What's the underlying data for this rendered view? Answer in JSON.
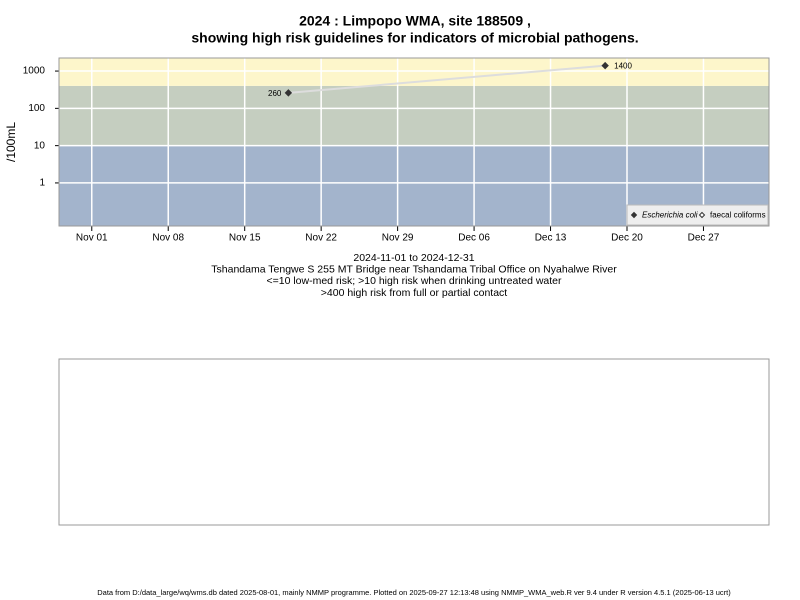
{
  "chart_data": {
    "type": "line",
    "title": [
      "2024 : Limpopo WMA, site 188509 ,",
      "showing high risk guidelines for indicators of microbial pathogens."
    ],
    "subtitle": [
      "2024-11-01 to 2024-12-31",
      "Tshandama Tengwe S 255 MT Bridge near Tshandama Tribal Office on Nyahalwe River",
      "<=10 low-med risk; >10 high risk when drinking untreated water",
      ">400 high risk from full or partial contact"
    ],
    "ylabel": "/100mL",
    "footer": "Data from D:/data_large/wq/wms.db dated 2025-08-01, mainly NMMP programme. Plotted on 2025-09-27 12:13:48 using NMMP_WMA_web.R ver 9.4 under R version 4.5.1 (2025-06-13 ucrt)",
    "x": [
      "2024-11-19",
      "2024-12-18"
    ],
    "series": [
      {
        "name": "Escherichia coli",
        "color": "#333333",
        "line_color": "#dddddd",
        "marker": "filled",
        "values": [
          260,
          1400
        ]
      },
      {
        "name": "faecal coliforms",
        "color": "#333333",
        "marker": "open",
        "values": [
          null,
          null
        ]
      }
    ],
    "log_y": true,
    "ylim": [
      0.07,
      2240
    ],
    "yticks": [
      1,
      10,
      100,
      1000
    ],
    "xlim": [
      "2024-10-29",
      "2025-01-02"
    ],
    "xticks": [
      {
        "value": "2024-11-01",
        "label": "Nov 01"
      },
      {
        "value": "2024-11-08",
        "label": "Nov 08"
      },
      {
        "value": "2024-11-15",
        "label": "Nov 15"
      },
      {
        "value": "2024-11-22",
        "label": "Nov 22"
      },
      {
        "value": "2024-11-29",
        "label": "Nov 29"
      },
      {
        "value": "2024-12-06",
        "label": "Dec 06"
      },
      {
        "value": "2024-12-13",
        "label": "Dec 13"
      },
      {
        "value": "2024-12-20",
        "label": "Dec 20"
      },
      {
        "value": "2024-12-27",
        "label": "Dec 27"
      }
    ],
    "risk_thresholds": [
      10,
      400
    ],
    "band_colors": [
      "#a3b4cc",
      "#c5cec0",
      "#fdf6cb"
    ],
    "grid": true,
    "legend_position": "bottom-right"
  }
}
